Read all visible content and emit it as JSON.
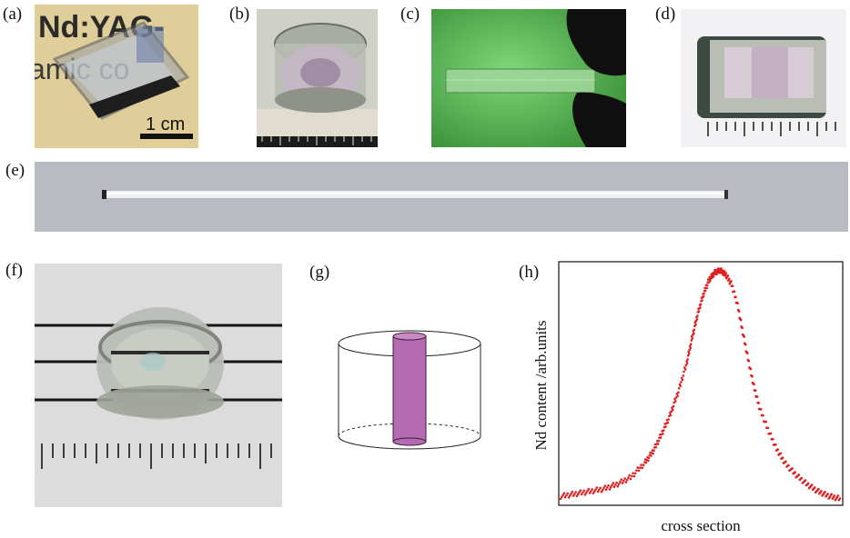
{
  "panels": {
    "a": {
      "label": "(a)",
      "photo_text_line1": "Nd:YAG-",
      "photo_text_line2": "amic co",
      "scale_bar": "1 cm"
    },
    "b": {
      "label": "(b)"
    },
    "c": {
      "label": "(c)"
    },
    "d": {
      "label": "(d)"
    },
    "e": {
      "label": "(e)"
    },
    "f": {
      "label": "(f)"
    },
    "g": {
      "label": "(g)"
    },
    "h": {
      "label": "(h)"
    }
  },
  "colors": {
    "photo_a_bg": "#d8c48a",
    "photo_c_bg": "#5fb85a",
    "rod_fill": "#b56bb2",
    "chart_dots": "#e02020"
  },
  "chart_data": {
    "type": "scatter",
    "xlabel": "cross section",
    "ylabel": "Nd content /arb.units",
    "grid": false,
    "series": [
      {
        "points": [
          [
            0.0,
            0.03
          ],
          [
            0.05,
            0.04
          ],
          [
            0.1,
            0.05
          ],
          [
            0.15,
            0.06
          ],
          [
            0.2,
            0.08
          ],
          [
            0.25,
            0.11
          ],
          [
            0.3,
            0.17
          ],
          [
            0.33,
            0.22
          ],
          [
            0.36,
            0.29
          ],
          [
            0.39,
            0.37
          ],
          [
            0.42,
            0.47
          ],
          [
            0.45,
            0.59
          ],
          [
            0.47,
            0.7
          ],
          [
            0.49,
            0.8
          ],
          [
            0.51,
            0.88
          ],
          [
            0.53,
            0.94
          ],
          [
            0.55,
            0.97
          ],
          [
            0.57,
            0.98
          ],
          [
            0.59,
            0.96
          ],
          [
            0.61,
            0.92
          ],
          [
            0.63,
            0.84
          ],
          [
            0.65,
            0.72
          ],
          [
            0.67,
            0.6
          ],
          [
            0.69,
            0.49
          ],
          [
            0.71,
            0.4
          ],
          [
            0.74,
            0.31
          ],
          [
            0.77,
            0.23
          ],
          [
            0.8,
            0.17
          ],
          [
            0.84,
            0.12
          ],
          [
            0.88,
            0.08
          ],
          [
            0.92,
            0.05
          ],
          [
            0.96,
            0.03
          ],
          [
            1.0,
            0.02
          ]
        ]
      }
    ]
  }
}
